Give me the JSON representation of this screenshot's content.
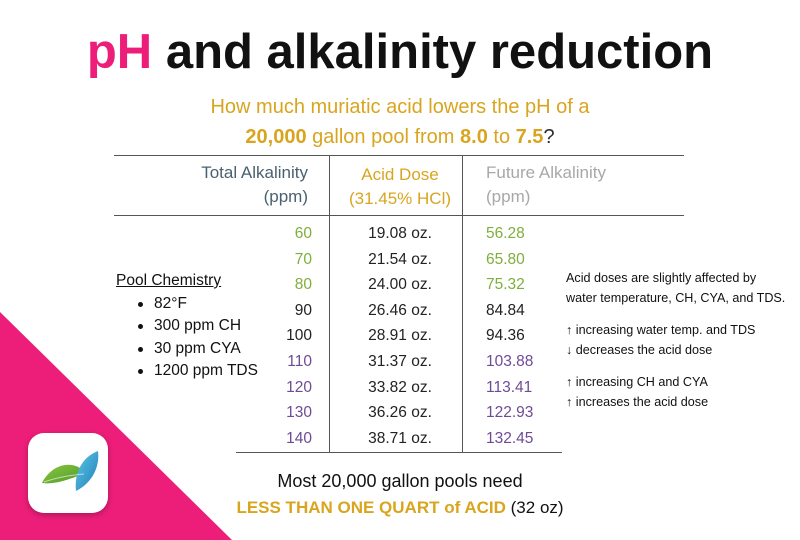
{
  "title": {
    "part1": "pH",
    "part2": " and alkalinity reduction"
  },
  "subtitle": {
    "line1": "How much muriatic acid lowers the pH of a",
    "gallons": "20,000",
    "mid": " gallon pool from ",
    "ph_from": "8.0",
    "to": " to ",
    "ph_to": "7.5",
    "end": "?"
  },
  "headers": {
    "total_alkalinity": [
      "Total Alkalinity",
      "(ppm)"
    ],
    "acid_dose": [
      "Acid Dose",
      "(31.45% HCl)"
    ],
    "future_alkalinity": [
      "Future Alkalinity",
      "(ppm)"
    ]
  },
  "table": {
    "rows": [
      {
        "ta": "60",
        "dose": "19.08 oz.",
        "future": "56.28",
        "color": "green"
      },
      {
        "ta": "70",
        "dose": "21.54 oz.",
        "future": "65.80",
        "color": "green"
      },
      {
        "ta": "80",
        "dose": "24.00 oz.",
        "future": "75.32",
        "color": "green"
      },
      {
        "ta": "90",
        "dose": "26.46 oz.",
        "future": "84.84",
        "color": "black"
      },
      {
        "ta": "100",
        "dose": "28.91 oz.",
        "future": "94.36",
        "color": "black"
      },
      {
        "ta": "110",
        "dose": "31.37 oz.",
        "future": "103.88",
        "color": "purple"
      },
      {
        "ta": "120",
        "dose": "33.82 oz.",
        "future": "113.41",
        "color": "purple"
      },
      {
        "ta": "130",
        "dose": "36.26 oz.",
        "future": "122.93",
        "color": "purple"
      },
      {
        "ta": "140",
        "dose": "38.71 oz.",
        "future": "132.45",
        "color": "purple"
      }
    ]
  },
  "pool_chemistry": {
    "title": "Pool Chemistry",
    "items": [
      "82°F",
      "300 ppm CH",
      "30 ppm CYA",
      "1200 ppm TDS"
    ]
  },
  "notes": {
    "line1": "Acid doses are slightly affected by",
    "line2": "water temperature, CH, CYA, and TDS.",
    "line3": "↑ increasing water temp. and TDS",
    "line4": "↓ decreases the acid dose",
    "line5": "↑ increasing CH and CYA",
    "line6": "↑ increases the acid dose"
  },
  "bottom": {
    "line1": "Most 20,000 gallon pools need",
    "emph": "LESS THAN ONE QUART of ACID",
    "paren": " (32 oz)"
  },
  "colors": {
    "pink": "#ec1e79",
    "gold": "#d9a51f",
    "green": "#7fae3a",
    "purple": "#6f4a96",
    "slate": "#4a6170",
    "gray": "#a8a8a8"
  },
  "icons": {
    "logo": "leaf-logo-icon"
  }
}
